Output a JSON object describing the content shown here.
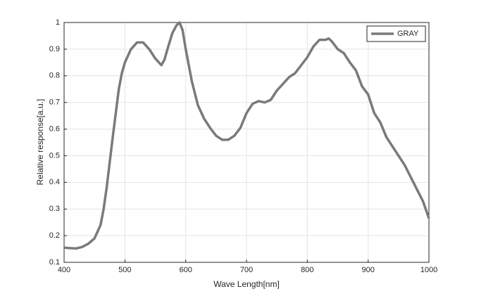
{
  "chart_data": {
    "type": "line",
    "xlabel": "Wave Length[nm]",
    "ylabel": "Relative response[a.u.]",
    "x": [
      400,
      410,
      420,
      430,
      440,
      450,
      460,
      465,
      470,
      480,
      490,
      495,
      500,
      510,
      520,
      530,
      540,
      550,
      560,
      565,
      570,
      578,
      585,
      590,
      595,
      600,
      610,
      620,
      630,
      640,
      650,
      660,
      670,
      680,
      690,
      700,
      710,
      720,
      730,
      740,
      750,
      760,
      770,
      780,
      790,
      800,
      810,
      820,
      830,
      835,
      840,
      850,
      860,
      870,
      880,
      890,
      900,
      910,
      920,
      930,
      940,
      950,
      960,
      970,
      980,
      990,
      1000
    ],
    "series": [
      {
        "name": "GRAY",
        "color": "#7a7a7a",
        "values": [
          0.155,
          0.153,
          0.152,
          0.158,
          0.17,
          0.19,
          0.24,
          0.3,
          0.38,
          0.57,
          0.75,
          0.81,
          0.85,
          0.9,
          0.925,
          0.925,
          0.9,
          0.865,
          0.84,
          0.86,
          0.9,
          0.96,
          0.99,
          1.0,
          0.97,
          0.9,
          0.78,
          0.69,
          0.64,
          0.605,
          0.575,
          0.56,
          0.56,
          0.575,
          0.605,
          0.66,
          0.695,
          0.705,
          0.7,
          0.71,
          0.745,
          0.77,
          0.795,
          0.81,
          0.84,
          0.87,
          0.91,
          0.935,
          0.935,
          0.94,
          0.93,
          0.9,
          0.885,
          0.85,
          0.82,
          0.76,
          0.73,
          0.66,
          0.625,
          0.57,
          0.535,
          0.5,
          0.465,
          0.42,
          0.375,
          0.33,
          0.265
        ]
      }
    ],
    "xlim": [
      400,
      1000
    ],
    "ylim": [
      0.1,
      1
    ],
    "xticks": [
      400,
      500,
      600,
      700,
      800,
      900,
      1000
    ],
    "yticks": [
      0.1,
      0.2,
      0.3,
      0.4,
      0.5,
      0.6,
      0.7,
      0.8,
      0.9,
      1
    ],
    "grid": true,
    "legend": "top-right"
  }
}
